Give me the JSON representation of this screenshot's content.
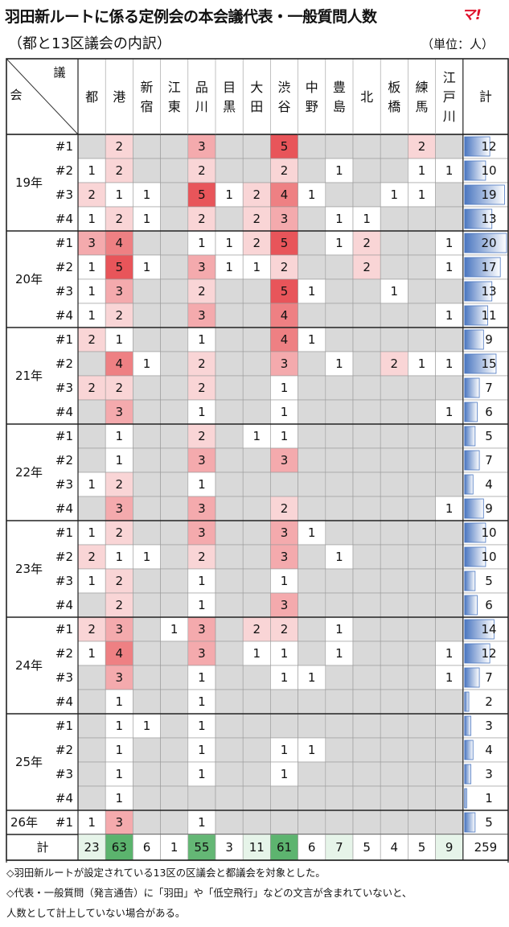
{
  "title": "羽田新ルートに係る定例会の本会議代表・一般質問人数",
  "logo": "マ!",
  "subtitle": "（都と13区議会の内訳）",
  "unit": "（単位：人）",
  "chart_data": {
    "type": "table",
    "corner": {
      "top": "議",
      "bottom": "会"
    },
    "columns": [
      "都",
      "港",
      "新宿",
      "江東",
      "品川",
      "目黒",
      "大田",
      "渋谷",
      "中野",
      "豊島",
      "北",
      "板橋",
      "練馬",
      "江戸川"
    ],
    "total_label": "計",
    "years": [
      {
        "label": "19年",
        "rows": [
          {
            "label": "#1",
            "values": [
              null,
              2,
              null,
              null,
              3,
              null,
              null,
              5,
              null,
              null,
              null,
              null,
              2,
              null
            ],
            "total": 12
          },
          {
            "label": "#2",
            "values": [
              1,
              2,
              null,
              null,
              2,
              null,
              null,
              2,
              null,
              1,
              null,
              null,
              1,
              1
            ],
            "total": 10
          },
          {
            "label": "#3",
            "values": [
              2,
              1,
              1,
              null,
              5,
              1,
              2,
              4,
              1,
              null,
              null,
              1,
              1,
              null
            ],
            "total": 19
          },
          {
            "label": "#4",
            "values": [
              1,
              2,
              1,
              null,
              2,
              null,
              2,
              3,
              null,
              1,
              1,
              null,
              null,
              null
            ],
            "total": 13
          }
        ]
      },
      {
        "label": "20年",
        "rows": [
          {
            "label": "#1",
            "values": [
              3,
              4,
              null,
              null,
              1,
              1,
              2,
              5,
              null,
              1,
              2,
              null,
              null,
              1
            ],
            "total": 20
          },
          {
            "label": "#2",
            "values": [
              1,
              5,
              1,
              null,
              3,
              1,
              1,
              2,
              null,
              null,
              2,
              null,
              null,
              1
            ],
            "total": 17
          },
          {
            "label": "#3",
            "values": [
              1,
              3,
              null,
              null,
              2,
              null,
              null,
              5,
              1,
              null,
              null,
              1,
              null,
              null
            ],
            "total": 13
          },
          {
            "label": "#4",
            "values": [
              1,
              2,
              null,
              null,
              3,
              null,
              null,
              4,
              null,
              null,
              null,
              null,
              null,
              1
            ],
            "total": 11
          }
        ]
      },
      {
        "label": "21年",
        "rows": [
          {
            "label": "#1",
            "values": [
              2,
              1,
              null,
              null,
              1,
              null,
              null,
              4,
              1,
              null,
              null,
              null,
              null,
              null
            ],
            "total": 9
          },
          {
            "label": "#2",
            "values": [
              null,
              4,
              1,
              null,
              2,
              null,
              null,
              3,
              null,
              1,
              null,
              2,
              1,
              1
            ],
            "total": 15
          },
          {
            "label": "#3",
            "values": [
              2,
              2,
              null,
              null,
              2,
              null,
              null,
              1,
              null,
              null,
              null,
              null,
              null,
              null
            ],
            "total": 7
          },
          {
            "label": "#4",
            "values": [
              null,
              3,
              null,
              null,
              1,
              null,
              null,
              1,
              null,
              null,
              null,
              null,
              null,
              1
            ],
            "total": 6
          }
        ]
      },
      {
        "label": "22年",
        "rows": [
          {
            "label": "#1",
            "values": [
              null,
              1,
              null,
              null,
              2,
              null,
              1,
              1,
              null,
              null,
              null,
              null,
              null,
              null
            ],
            "total": 5
          },
          {
            "label": "#2",
            "values": [
              null,
              1,
              null,
              null,
              3,
              null,
              null,
              3,
              null,
              null,
              null,
              null,
              null,
              null
            ],
            "total": 7
          },
          {
            "label": "#3",
            "values": [
              1,
              2,
              null,
              null,
              1,
              null,
              null,
              null,
              null,
              null,
              null,
              null,
              null,
              null
            ],
            "total": 4
          },
          {
            "label": "#4",
            "values": [
              null,
              3,
              null,
              null,
              3,
              null,
              null,
              2,
              null,
              null,
              null,
              null,
              null,
              1
            ],
            "total": 9
          }
        ]
      },
      {
        "label": "23年",
        "rows": [
          {
            "label": "#1",
            "values": [
              1,
              2,
              null,
              null,
              3,
              null,
              null,
              3,
              1,
              null,
              null,
              null,
              null,
              null
            ],
            "total": 10
          },
          {
            "label": "#2",
            "values": [
              2,
              1,
              1,
              null,
              2,
              null,
              null,
              3,
              null,
              1,
              null,
              null,
              null,
              null
            ],
            "total": 10
          },
          {
            "label": "#3",
            "values": [
              1,
              2,
              null,
              null,
              1,
              null,
              null,
              1,
              null,
              null,
              null,
              null,
              null,
              null
            ],
            "total": 5
          },
          {
            "label": "#4",
            "values": [
              null,
              2,
              null,
              null,
              1,
              null,
              null,
              3,
              null,
              null,
              null,
              null,
              null,
              null
            ],
            "total": 6
          }
        ]
      },
      {
        "label": "24年",
        "rows": [
          {
            "label": "#1",
            "values": [
              2,
              3,
              null,
              1,
              3,
              null,
              2,
              2,
              null,
              1,
              null,
              null,
              null,
              null
            ],
            "total": 14
          },
          {
            "label": "#2",
            "values": [
              1,
              4,
              null,
              null,
              3,
              null,
              1,
              1,
              null,
              1,
              null,
              null,
              null,
              1
            ],
            "total": 12
          },
          {
            "label": "#3",
            "values": [
              null,
              3,
              null,
              null,
              1,
              null,
              null,
              1,
              1,
              null,
              null,
              null,
              null,
              1
            ],
            "total": 7
          },
          {
            "label": "#4",
            "values": [
              null,
              1,
              null,
              null,
              1,
              null,
              null,
              null,
              null,
              null,
              null,
              null,
              null,
              null
            ],
            "total": 2
          }
        ]
      },
      {
        "label": "25年",
        "rows": [
          {
            "label": "#1",
            "values": [
              null,
              1,
              1,
              null,
              1,
              null,
              null,
              null,
              null,
              null,
              null,
              null,
              null,
              null
            ],
            "total": 3
          },
          {
            "label": "#2",
            "values": [
              null,
              1,
              null,
              null,
              1,
              null,
              null,
              1,
              1,
              null,
              null,
              null,
              null,
              null
            ],
            "total": 4
          },
          {
            "label": "#3",
            "values": [
              null,
              1,
              null,
              null,
              1,
              null,
              null,
              1,
              null,
              null,
              null,
              null,
              null,
              null
            ],
            "total": 3
          },
          {
            "label": "#4",
            "values": [
              null,
              1,
              null,
              null,
              null,
              null,
              null,
              null,
              null,
              null,
              null,
              null,
              null,
              null
            ],
            "total": 1
          }
        ]
      },
      {
        "label": "26年",
        "rows": [
          {
            "label": "#1",
            "values": [
              1,
              3,
              null,
              null,
              1,
              null,
              null,
              null,
              null,
              null,
              null,
              null,
              null,
              null
            ],
            "total": 5
          }
        ]
      }
    ],
    "column_totals": [
      23,
      63,
      6,
      1,
      55,
      3,
      11,
      61,
      6,
      7,
      5,
      4,
      5,
      9
    ],
    "grand_total": 259,
    "colors": {
      "heat": "#e8555a",
      "empty": "#d9d9d9",
      "total_high": "#5bb36d",
      "bar": "#4a76c0"
    }
  },
  "notes": [
    "◇羽田新ルートが設定されている13区の区議会と都議会を対象とした。",
    "◇代表・一般質問（発言通告）に「羽田」や「低空飛行」などの文言が含まれていないと、",
    "人数として計上していない場合がある。"
  ]
}
